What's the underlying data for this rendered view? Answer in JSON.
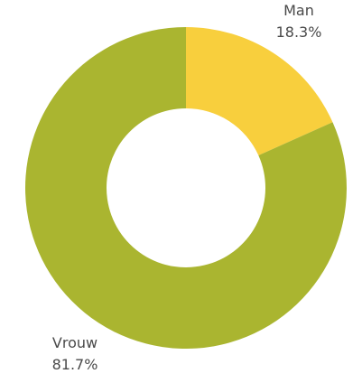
{
  "chart_data": {
    "type": "pie",
    "donut": true,
    "title": "",
    "slices": [
      {
        "label": "Man",
        "value": 18.3,
        "display": "18.3%",
        "color": "#F8CF3D"
      },
      {
        "label": "Vrouw",
        "value": 81.7,
        "display": "81.7%",
        "color": "#AAB530"
      }
    ],
    "legend": "none",
    "labels_position": "outside"
  }
}
